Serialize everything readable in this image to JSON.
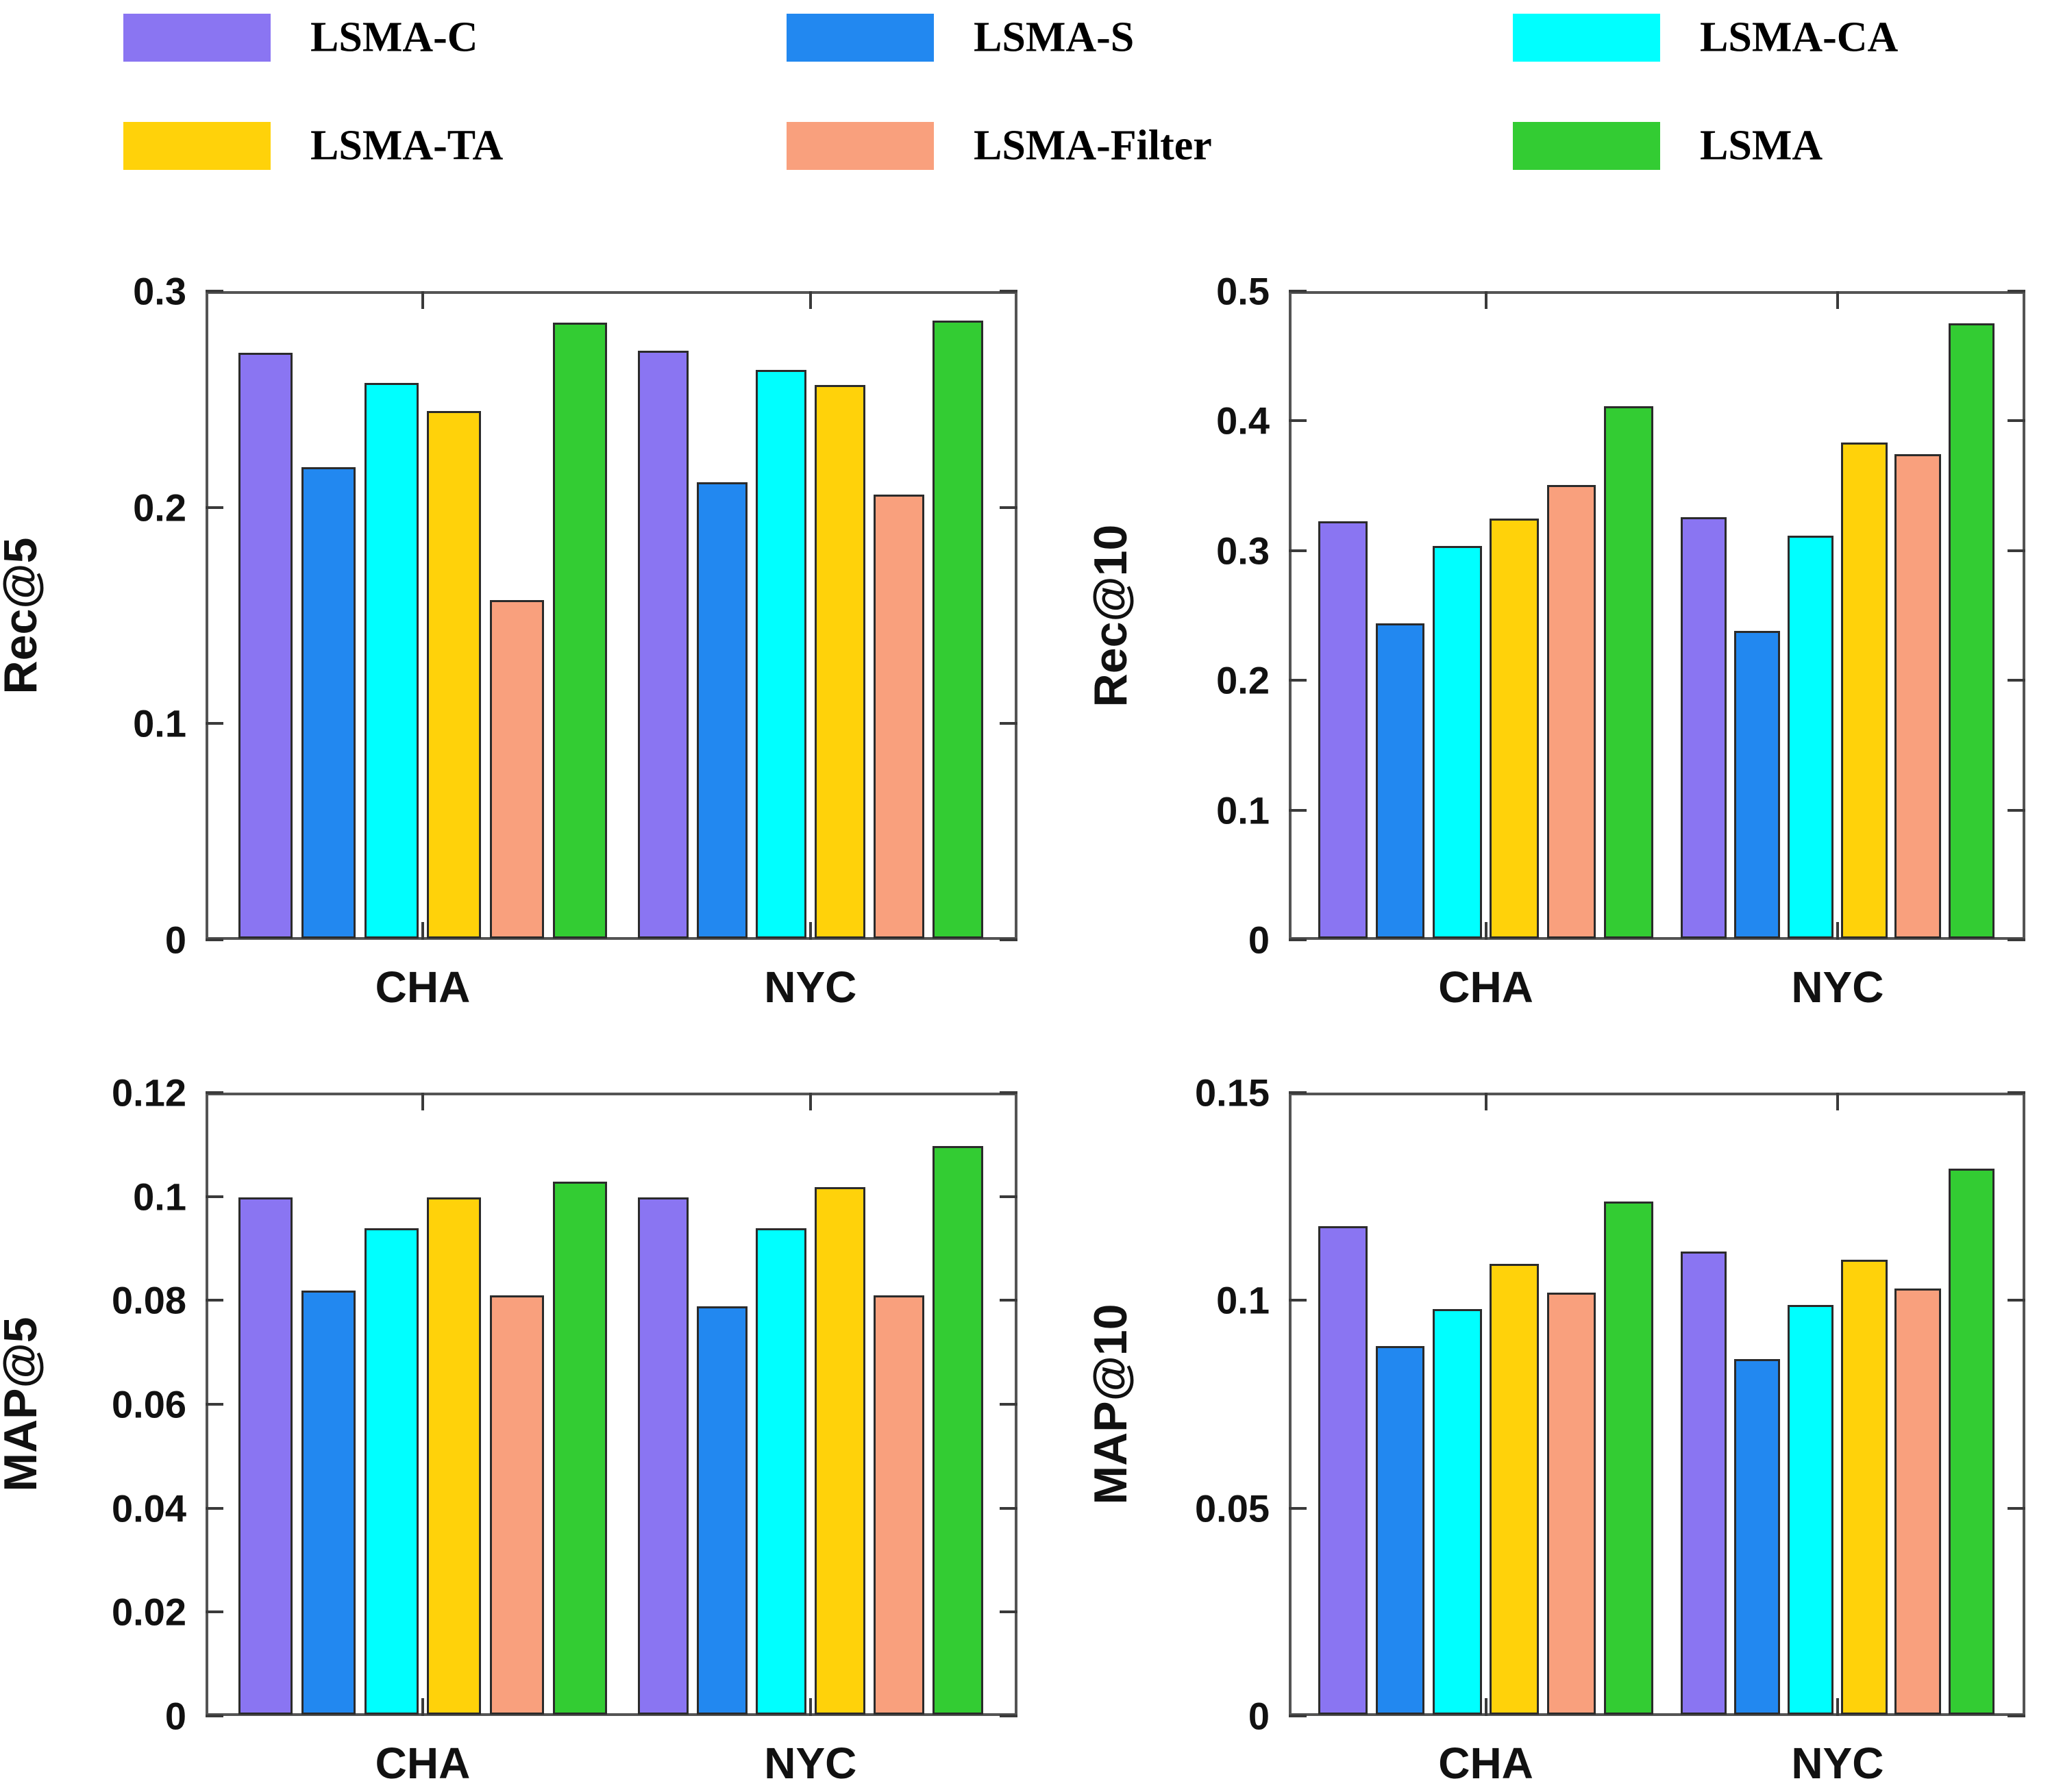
{
  "legend": {
    "items": [
      {
        "label": "LSMA-C",
        "color": "#8A75F2"
      },
      {
        "label": "LSMA-S",
        "color": "#2288F0"
      },
      {
        "label": "LSMA-CA",
        "color": "#00FFFF"
      },
      {
        "label": "LSMA-TA",
        "color": "#FFD20A"
      },
      {
        "label": "LSMA-Filter",
        "color": "#F9A07D"
      },
      {
        "label": "LSMA",
        "color": "#33CC33"
      }
    ]
  },
  "chart_data": [
    {
      "type": "bar",
      "title": "",
      "xlabel": "",
      "ylabel": "Rec@5",
      "categories": [
        "CHA",
        "NYC"
      ],
      "ylim": [
        0,
        0.3
      ],
      "yticks": [
        0,
        0.1,
        0.2,
        0.3
      ],
      "ytick_labels": [
        "0",
        "0.1",
        "0.2",
        "0.3"
      ],
      "grid": false,
      "legend_position": "top",
      "series": [
        {
          "name": "LSMA-C",
          "color": "#8A75F2",
          "values": [
            0.272,
            0.273
          ]
        },
        {
          "name": "LSMA-S",
          "color": "#2288F0",
          "values": [
            0.219,
            0.212
          ]
        },
        {
          "name": "LSMA-CA",
          "color": "#00FFFF",
          "values": [
            0.258,
            0.264
          ]
        },
        {
          "name": "LSMA-TA",
          "color": "#FFD20A",
          "values": [
            0.245,
            0.257
          ]
        },
        {
          "name": "LSMA-Filter",
          "color": "#F9A07D",
          "values": [
            0.157,
            0.206
          ]
        },
        {
          "name": "LSMA",
          "color": "#33CC33",
          "values": [
            0.286,
            0.287
          ]
        }
      ]
    },
    {
      "type": "bar",
      "title": "",
      "xlabel": "",
      "ylabel": "Rec@10",
      "categories": [
        "CHA",
        "NYC"
      ],
      "ylim": [
        0,
        0.5
      ],
      "yticks": [
        0,
        0.1,
        0.2,
        0.3,
        0.4,
        0.5
      ],
      "ytick_labels": [
        "0",
        "0.1",
        "0.2",
        "0.3",
        "0.4",
        "0.5"
      ],
      "grid": false,
      "legend_position": "top",
      "series": [
        {
          "name": "LSMA-C",
          "color": "#8A75F2",
          "values": [
            0.323,
            0.326
          ]
        },
        {
          "name": "LSMA-S",
          "color": "#2288F0",
          "values": [
            0.244,
            0.238
          ]
        },
        {
          "name": "LSMA-CA",
          "color": "#00FFFF",
          "values": [
            0.304,
            0.312
          ]
        },
        {
          "name": "LSMA-TA",
          "color": "#FFD20A",
          "values": [
            0.325,
            0.384
          ]
        },
        {
          "name": "LSMA-Filter",
          "color": "#F9A07D",
          "values": [
            0.351,
            0.375
          ]
        },
        {
          "name": "LSMA",
          "color": "#33CC33",
          "values": [
            0.412,
            0.476
          ]
        }
      ]
    },
    {
      "type": "bar",
      "title": "",
      "xlabel": "",
      "ylabel": "MAP@5",
      "categories": [
        "CHA",
        "NYC"
      ],
      "ylim": [
        0,
        0.12
      ],
      "yticks": [
        0,
        0.02,
        0.04,
        0.06,
        0.08,
        0.1,
        0.12
      ],
      "ytick_labels": [
        "0",
        "0.02",
        "0.04",
        "0.06",
        "0.08",
        "0.1",
        "0.12"
      ],
      "grid": false,
      "legend_position": "top",
      "series": [
        {
          "name": "LSMA-C",
          "color": "#8A75F2",
          "values": [
            0.1,
            0.1
          ]
        },
        {
          "name": "LSMA-S",
          "color": "#2288F0",
          "values": [
            0.082,
            0.079
          ]
        },
        {
          "name": "LSMA-CA",
          "color": "#00FFFF",
          "values": [
            0.094,
            0.094
          ]
        },
        {
          "name": "LSMA-TA",
          "color": "#FFD20A",
          "values": [
            0.1,
            0.102
          ]
        },
        {
          "name": "LSMA-Filter",
          "color": "#F9A07D",
          "values": [
            0.081,
            0.081
          ]
        },
        {
          "name": "LSMA",
          "color": "#33CC33",
          "values": [
            0.103,
            0.11
          ]
        }
      ]
    },
    {
      "type": "bar",
      "title": "",
      "xlabel": "",
      "ylabel": "MAP@10",
      "categories": [
        "CHA",
        "NYC"
      ],
      "ylim": [
        0,
        0.15
      ],
      "yticks": [
        0,
        0.05,
        0.1,
        0.15
      ],
      "ytick_labels": [
        "0",
        "0.05",
        "0.1",
        "0.15"
      ],
      "grid": false,
      "legend_position": "top",
      "series": [
        {
          "name": "LSMA-C",
          "color": "#8A75F2",
          "values": [
            0.118,
            0.112
          ]
        },
        {
          "name": "LSMA-S",
          "color": "#2288F0",
          "values": [
            0.089,
            0.086
          ]
        },
        {
          "name": "LSMA-CA",
          "color": "#00FFFF",
          "values": [
            0.098,
            0.099
          ]
        },
        {
          "name": "LSMA-TA",
          "color": "#FFD20A",
          "values": [
            0.109,
            0.11
          ]
        },
        {
          "name": "LSMA-Filter",
          "color": "#F9A07D",
          "values": [
            0.102,
            0.103
          ]
        },
        {
          "name": "LSMA",
          "color": "#33CC33",
          "values": [
            0.124,
            0.132
          ]
        }
      ]
    }
  ]
}
